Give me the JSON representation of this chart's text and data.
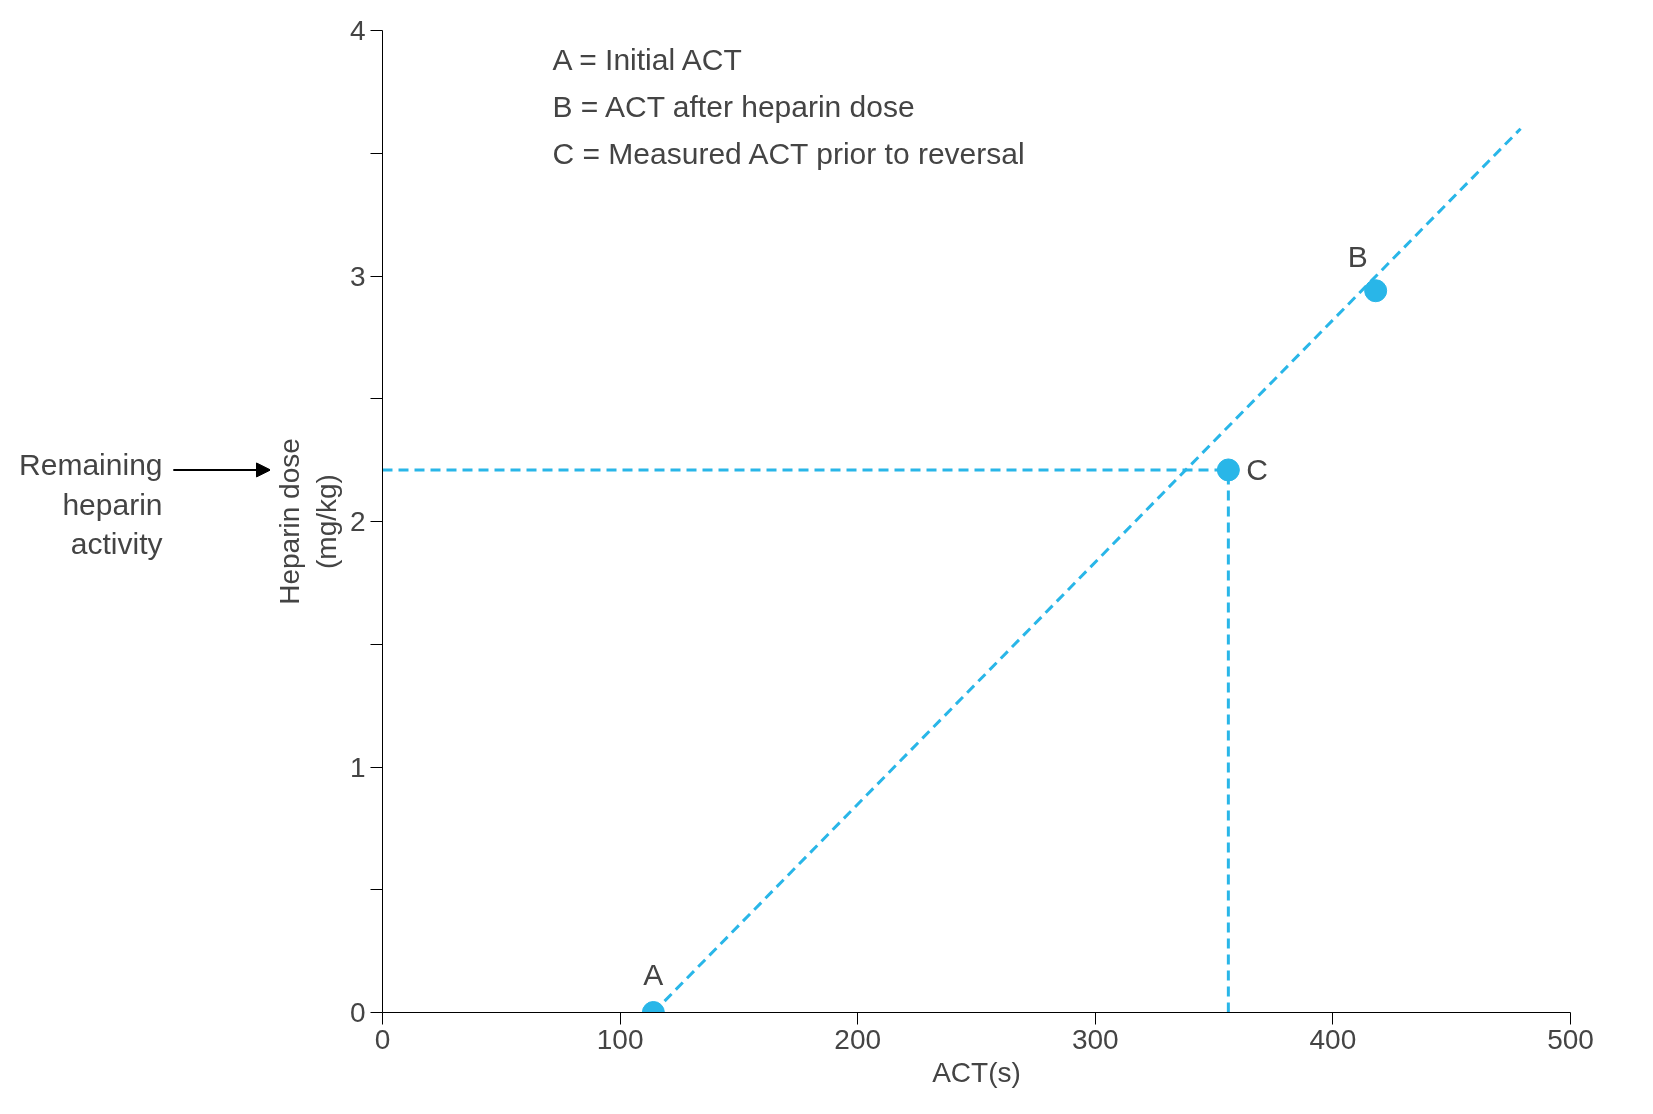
{
  "chart_data": {
    "type": "line",
    "xlabel": "ACT(s)",
    "ylabel": "Heparin dose (mg/kg)",
    "xlim": [
      0,
      500
    ],
    "ylim": [
      0,
      4
    ],
    "xticks": [
      0,
      100,
      200,
      300,
      400,
      500
    ],
    "yticks": [
      0,
      {
        "value": 0.5,
        "label": null
      },
      1,
      {
        "value": 1.5,
        "label": null
      },
      2,
      {
        "value": 2.5,
        "label": null
      },
      3,
      {
        "value": 3.5,
        "label": null
      },
      4
    ],
    "grid": false,
    "line_style": "dashed",
    "marker": "none",
    "series": [
      {
        "type": "line",
        "color": "#29b6e8",
        "x": [
          114,
          479
        ],
        "values": [
          0,
          3.6
        ]
      },
      {
        "type": "line",
        "color": "#29b6e8",
        "x": [
          0,
          356
        ],
        "values": [
          2.21,
          2.21
        ]
      },
      {
        "type": "line",
        "color": "#29b6e8",
        "x": [
          356,
          356
        ],
        "values": [
          0,
          2.21
        ]
      },
      {
        "type": "scatter",
        "color": "#29b6e8",
        "marker": "circle",
        "x": [
          114,
          418,
          356
        ],
        "values": [
          0,
          2.94,
          2.21
        ]
      }
    ],
    "annotations": [
      "A = Initial ACT",
      "B = ACT after heparin dose",
      "C = Measured ACT prior to reversal",
      {
        "text": "A",
        "x": 114,
        "y": 0
      },
      {
        "text": "B",
        "x": 418,
        "y": 2.94
      },
      {
        "text": "C",
        "x": 356,
        "y": 2.21
      },
      "Remaining heparin activity"
    ]
  }
}
